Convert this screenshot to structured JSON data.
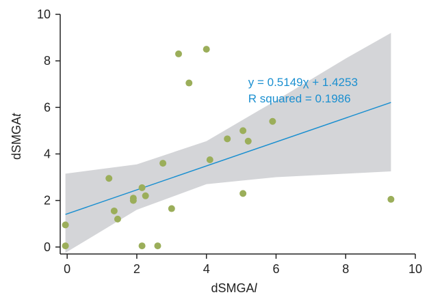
{
  "chart_data": {
    "type": "scatter",
    "title": "",
    "xlabel": "dSMGA",
    "xlabel_suffix": "l",
    "ylabel": "dSMGA",
    "ylabel_suffix": "t",
    "xlim": [
      -0.2,
      10
    ],
    "ylim": [
      -0.3,
      10
    ],
    "x_ticks": [
      0,
      2,
      4,
      6,
      8,
      10
    ],
    "y_ticks": [
      0,
      2,
      4,
      6,
      8,
      10
    ],
    "grid": false,
    "points": [
      {
        "x": -0.05,
        "y": 0.95
      },
      {
        "x": -0.05,
        "y": 0.05
      },
      {
        "x": 1.2,
        "y": 2.95
      },
      {
        "x": 1.35,
        "y": 1.55
      },
      {
        "x": 1.45,
        "y": 1.2
      },
      {
        "x": 1.9,
        "y": 2.1
      },
      {
        "x": 1.9,
        "y": 2.0
      },
      {
        "x": 2.15,
        "y": 2.55
      },
      {
        "x": 2.25,
        "y": 2.2
      },
      {
        "x": 2.15,
        "y": 0.05
      },
      {
        "x": 2.6,
        "y": 0.05
      },
      {
        "x": 2.75,
        "y": 3.6
      },
      {
        "x": 3.0,
        "y": 1.65
      },
      {
        "x": 3.2,
        "y": 8.3
      },
      {
        "x": 3.5,
        "y": 7.05
      },
      {
        "x": 4.0,
        "y": 8.5
      },
      {
        "x": 4.1,
        "y": 3.75
      },
      {
        "x": 4.6,
        "y": 4.65
      },
      {
        "x": 5.05,
        "y": 5.0
      },
      {
        "x": 5.05,
        "y": 2.3
      },
      {
        "x": 5.2,
        "y": 4.55
      },
      {
        "x": 5.9,
        "y": 5.4
      },
      {
        "x": 9.3,
        "y": 2.05
      }
    ],
    "regression": {
      "slope": 0.5149,
      "intercept": 1.4253,
      "x_range": [
        -0.05,
        9.3
      ]
    },
    "confidence_band": {
      "x": [
        -0.05,
        2.0,
        4.0,
        6.0,
        8.0,
        9.3
      ],
      "upper": [
        3.15,
        3.55,
        4.55,
        6.3,
        8.1,
        9.2
      ],
      "lower": [
        -0.25,
        1.6,
        2.7,
        3.0,
        3.15,
        3.25
      ]
    },
    "annotation": {
      "line1": "y = 0.5149χ + 1.4253",
      "line2": "R squared = 0.1986",
      "x": 5.2,
      "y": 7.1
    },
    "colors": {
      "points": "#9bae5a",
      "line": "#1a8fd0",
      "band": "#d4d5d8",
      "axis": "#222222",
      "annotation": "#1a8fd0"
    }
  }
}
